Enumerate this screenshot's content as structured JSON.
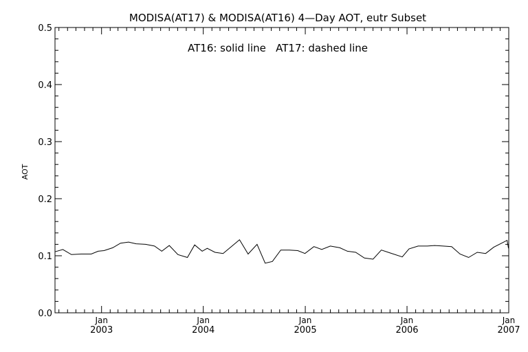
{
  "chart_data": {
    "type": "line",
    "title": "MODISA(AT17) & MODISA(AT16) 4—Day AOT, eutr Subset",
    "annotation": "AT16: solid line   AT17: dashed line",
    "ylabel": "AOT",
    "xlabel": "",
    "ylim": [
      0.0,
      0.5
    ],
    "yticks": [
      "0.0",
      "0.1",
      "0.2",
      "0.3",
      "0.4",
      "0.5"
    ],
    "xlim": [
      "2002-07-18",
      "2007-01-01"
    ],
    "xticks": [
      {
        "month": "Jan",
        "year": "2003",
        "date": "2003-01-01"
      },
      {
        "month": "Jan",
        "year": "2004",
        "date": "2004-01-01"
      },
      {
        "month": "Jan",
        "year": "2005",
        "date": "2005-01-01"
      },
      {
        "month": "Jan",
        "year": "2006",
        "date": "2006-01-01"
      },
      {
        "month": "Jan",
        "year": "2007",
        "date": "2007-01-01"
      }
    ],
    "grid": false,
    "series": [
      {
        "name": "AT16",
        "style": "solid",
        "color": "#000000",
        "points": [
          [
            "2002-07-18",
            0.107
          ],
          [
            "2002-08-15",
            0.111
          ],
          [
            "2002-09-15",
            0.102
          ],
          [
            "2002-10-20",
            0.103
          ],
          [
            "2002-11-25",
            0.103
          ],
          [
            "2002-12-20",
            0.108
          ],
          [
            "2003-01-10",
            0.109
          ],
          [
            "2003-02-10",
            0.114
          ],
          [
            "2003-03-10",
            0.122
          ],
          [
            "2003-04-08",
            0.124
          ],
          [
            "2003-05-05",
            0.121
          ],
          [
            "2003-06-08",
            0.12
          ],
          [
            "2003-07-10",
            0.117
          ],
          [
            "2003-08-05",
            0.108
          ],
          [
            "2003-09-01",
            0.118
          ],
          [
            "2003-10-02",
            0.102
          ],
          [
            "2003-11-05",
            0.097
          ],
          [
            "2003-12-01",
            0.119
          ],
          [
            "2003-12-28",
            0.108
          ],
          [
            "2004-01-15",
            0.113
          ],
          [
            "2004-02-12",
            0.106
          ],
          [
            "2004-03-12",
            0.104
          ],
          [
            "2004-04-08",
            0.115
          ],
          [
            "2004-05-10",
            0.128
          ],
          [
            "2004-06-10",
            0.103
          ],
          [
            "2004-07-12",
            0.12
          ],
          [
            "2004-08-10",
            0.087
          ],
          [
            "2004-09-05",
            0.09
          ],
          [
            "2004-10-05",
            0.11
          ],
          [
            "2004-11-05",
            0.11
          ],
          [
            "2004-12-05",
            0.109
          ],
          [
            "2004-12-31",
            0.104
          ],
          [
            "2005-02-01",
            0.116
          ],
          [
            "2005-03-01",
            0.111
          ],
          [
            "2005-04-01",
            0.117
          ],
          [
            "2005-05-05",
            0.114
          ],
          [
            "2005-06-01",
            0.108
          ],
          [
            "2005-07-01",
            0.106
          ],
          [
            "2005-08-01",
            0.096
          ],
          [
            "2005-09-01",
            0.094
          ],
          [
            "2005-10-01",
            0.11
          ],
          [
            "2005-11-01",
            0.105
          ],
          [
            "2005-12-15",
            0.098
          ],
          [
            "2006-01-08",
            0.112
          ],
          [
            "2006-02-10",
            0.117
          ],
          [
            "2006-03-15",
            0.117
          ],
          [
            "2006-04-10",
            0.118
          ],
          [
            "2006-05-10",
            0.117
          ],
          [
            "2006-06-10",
            0.116
          ],
          [
            "2006-07-10",
            0.103
          ],
          [
            "2006-08-10",
            0.097
          ],
          [
            "2006-09-10",
            0.106
          ],
          [
            "2006-10-10",
            0.104
          ],
          [
            "2006-11-08",
            0.115
          ],
          [
            "2006-12-10",
            0.123
          ],
          [
            "2006-12-26",
            0.127
          ],
          [
            "2006-12-31",
            0.113
          ]
        ]
      }
    ]
  }
}
